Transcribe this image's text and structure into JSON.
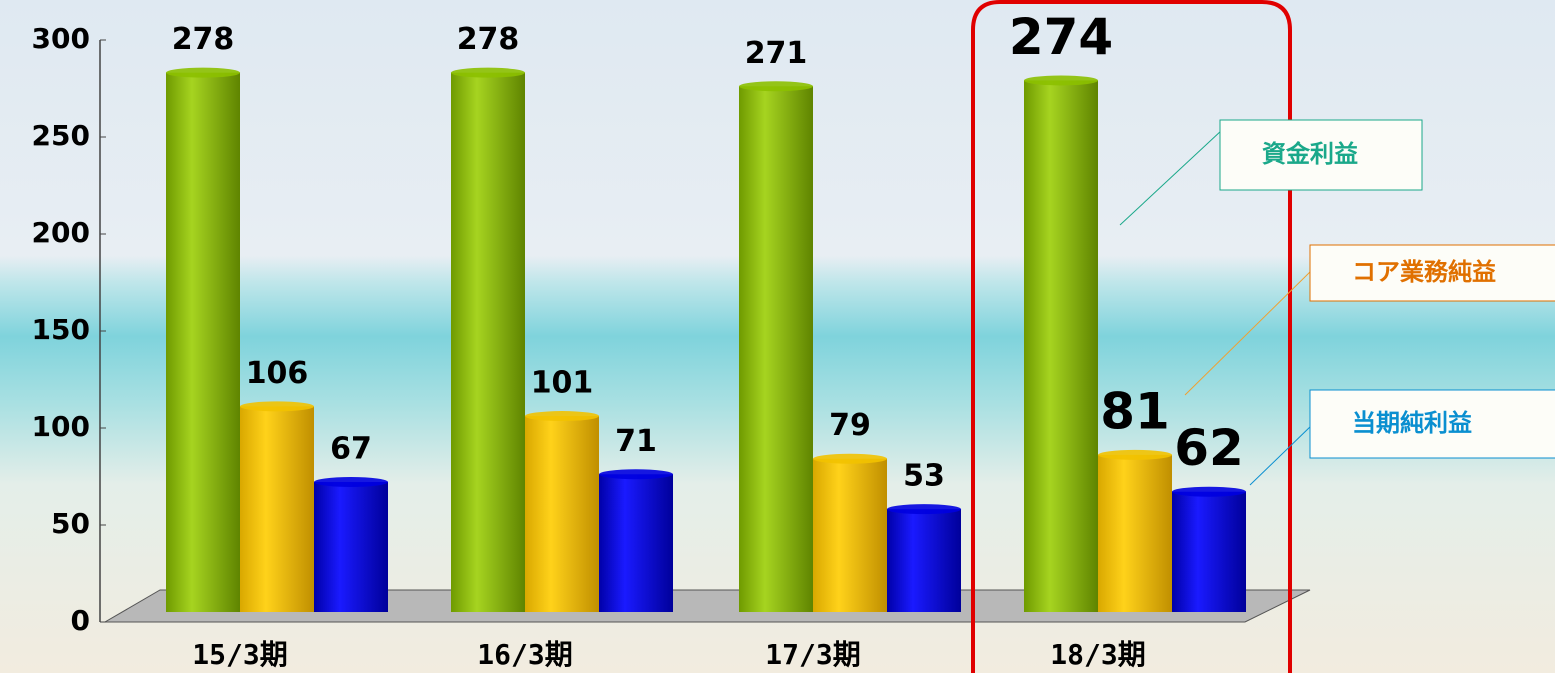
{
  "chart_data": {
    "type": "bar",
    "categories": [
      "15/3期",
      "16/3期",
      "17/3期",
      "18/3期"
    ],
    "series": [
      {
        "name": "資金利益",
        "color": "#8cc000",
        "values": [
          278,
          278,
          271,
          274
        ]
      },
      {
        "name": "コア業務純益",
        "color": "#f2c200",
        "values": [
          106,
          101,
          79,
          81
        ]
      },
      {
        "name": "当期純利益",
        "color": "#0000e0",
        "values": [
          67,
          71,
          53,
          62
        ]
      }
    ],
    "legend_colors": [
      "#1aa88a",
      "#e07000",
      "#0a8fd0"
    ],
    "ylim": [
      0,
      300
    ],
    "yticks": [
      0,
      50,
      100,
      150,
      200,
      250,
      300
    ],
    "grid": false
  }
}
